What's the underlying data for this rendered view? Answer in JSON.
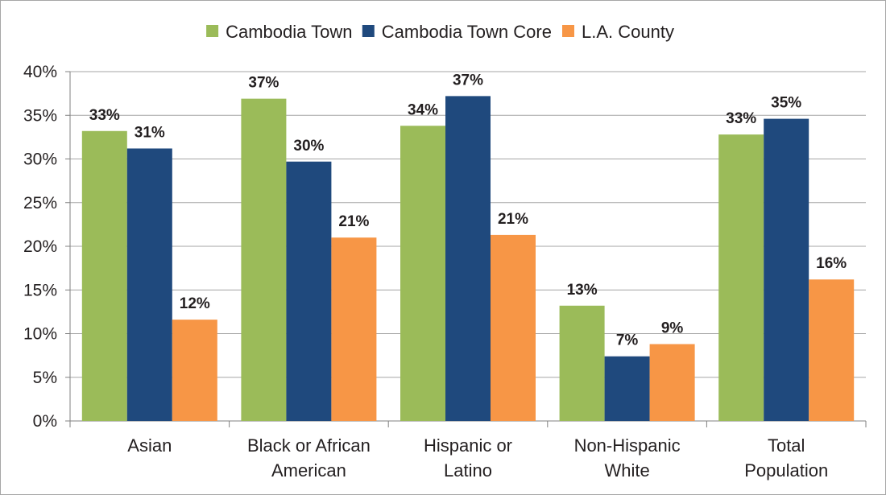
{
  "chart_data": {
    "type": "bar",
    "categories": [
      [
        "Asian"
      ],
      [
        "Black or African",
        "American"
      ],
      [
        "Hispanic or",
        "Latino"
      ],
      [
        "Non-Hispanic",
        "White"
      ],
      [
        "Total",
        "Population"
      ]
    ],
    "series": [
      {
        "name": "Cambodia Town",
        "color": "#9bbb59",
        "values": [
          33.2,
          36.9,
          33.8,
          13.2,
          32.8
        ],
        "labels": [
          "33%",
          "37%",
          "34%",
          "13%",
          "33%"
        ]
      },
      {
        "name": "Cambodia Town Core",
        "color": "#1f497d",
        "values": [
          31.2,
          29.7,
          37.2,
          7.4,
          34.6
        ],
        "labels": [
          "31%",
          "30%",
          "37%",
          "7%",
          "35%"
        ]
      },
      {
        "name": "L.A. County",
        "color": "#f79646",
        "values": [
          11.6,
          21.0,
          21.3,
          8.8,
          16.2
        ],
        "labels": [
          "12%",
          "21%",
          "21%",
          "9%",
          "16%"
        ]
      }
    ],
    "y_ticks": [
      "0%",
      "5%",
      "10%",
      "15%",
      "20%",
      "25%",
      "30%",
      "35%",
      "40%"
    ],
    "ylim": [
      0,
      40
    ],
    "grid": true,
    "legend_position": "top"
  }
}
